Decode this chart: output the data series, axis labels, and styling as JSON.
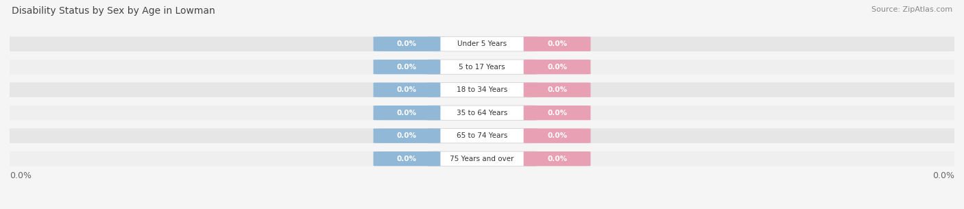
{
  "title": "Disability Status by Sex by Age in Lowman",
  "source": "Source: ZipAtlas.com",
  "categories": [
    "Under 5 Years",
    "5 to 17 Years",
    "18 to 34 Years",
    "35 to 64 Years",
    "65 to 74 Years",
    "75 Years and over"
  ],
  "male_values": [
    0.0,
    0.0,
    0.0,
    0.0,
    0.0,
    0.0
  ],
  "female_values": [
    0.0,
    0.0,
    0.0,
    0.0,
    0.0,
    0.0
  ],
  "male_color": "#92b8d8",
  "female_color": "#e8a0b4",
  "title_color": "#444444",
  "source_color": "#888888",
  "axis_label_color": "#666666",
  "row_colors": [
    "#efefef",
    "#e6e6e6"
  ],
  "fig_bg_color": "#f5f5f5",
  "figsize": [
    14.06,
    3.05
  ],
  "dpi": 100
}
